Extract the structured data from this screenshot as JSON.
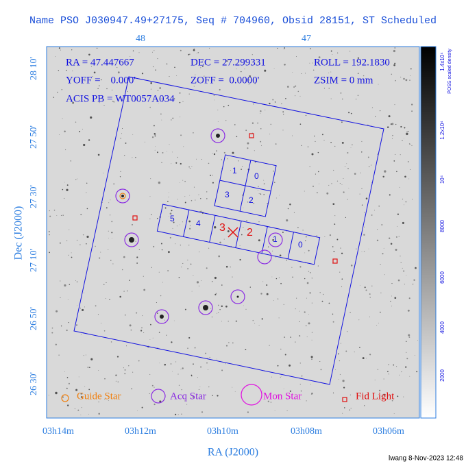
{
  "header": {
    "title": "Name PSO J030947.49+27175, Seq # 704960, Obsid 28151, ST Scheduled"
  },
  "axes": {
    "top_ticks": [
      "48",
      "47"
    ],
    "left_ticks": [
      "28 10'",
      "27 50'",
      "27 30'",
      "27 10'",
      "26 50'",
      "26 30'"
    ],
    "bottom_ticks": [
      "03h14m",
      "03h12m",
      "03h10m",
      "03h08m",
      "03h06m"
    ],
    "x_label": "RA (J2000)",
    "y_label": "Dec (J2000)"
  },
  "info": {
    "ra": "RA = 47.447667",
    "dec": "DEC = 27.299331",
    "roll": "ROLL = 192.1830",
    "yoff": "YOFF =    0.000'",
    "zoff": "ZOFF =  0.0000'",
    "zsim": "ZSIM = 0 mm",
    "acis_pb": "ACIS PB = WT0057A034"
  },
  "chips": {
    "acis_i": [
      "1",
      "0",
      "3",
      "2"
    ],
    "acis_s": [
      "5",
      "4",
      "3",
      "2",
      "1",
      "0"
    ]
  },
  "legend": [
    "Guide Star",
    "Acq Star",
    "Mon Star",
    "Fid Light"
  ],
  "colorbar": {
    "title": "POSS scaled density",
    "ticks": [
      "1.4x10⁴",
      "1.2x10⁴",
      "10⁴",
      "8000",
      "6000",
      "4000",
      "2000"
    ]
  },
  "footer": "lwang  8-Nov-2023 12:48"
}
